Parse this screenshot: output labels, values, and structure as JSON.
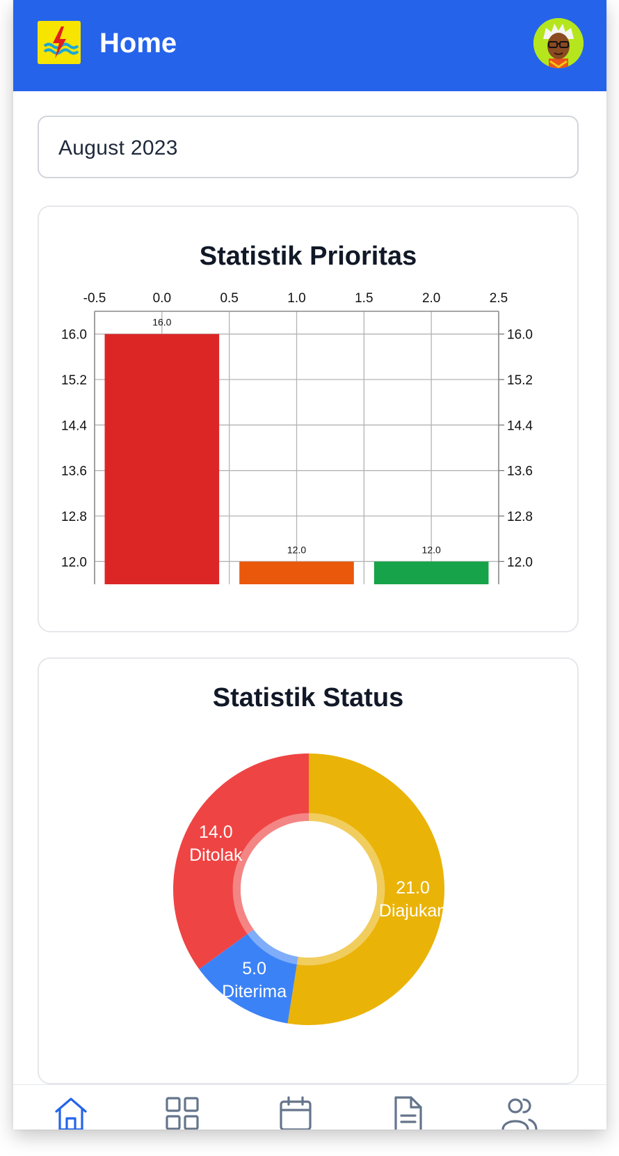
{
  "app": {
    "title": "Home",
    "logo_icon": "pln-lightning-logo-icon",
    "avatar_icon": "user-avatar-icon"
  },
  "month_picker": {
    "value": "August 2023"
  },
  "bar_card": {
    "title": "Statistik Prioritas"
  },
  "pie_card": {
    "title": "Statistik Status"
  },
  "chart_data": [
    {
      "type": "bar",
      "title": "Statistik Prioritas",
      "x": [
        0,
        1,
        2
      ],
      "values": [
        16.0,
        12.0,
        12.0
      ],
      "value_labels": [
        "16.0",
        "12.0",
        "12.0"
      ],
      "colors": [
        "#dc2626",
        "#ea580c",
        "#16a34a"
      ],
      "x_ticks": [
        "-0.5",
        "0.0",
        "0.5",
        "1.0",
        "1.5",
        "2.0",
        "2.5"
      ],
      "x_tick_values": [
        -0.5,
        0.0,
        0.5,
        1.0,
        1.5,
        2.0,
        2.5
      ],
      "y_ticks": [
        "12.0",
        "12.8",
        "13.6",
        "14.4",
        "15.2",
        "16.0"
      ],
      "y_tick_values": [
        12.0,
        12.8,
        13.6,
        14.4,
        15.2,
        16.0
      ],
      "xlim": [
        -0.5,
        2.5
      ],
      "ylim": [
        11.6,
        16.4
      ],
      "grid": true,
      "x_axis_position": "top",
      "y_axis_position": "both"
    },
    {
      "type": "pie",
      "title": "Statistik Status",
      "donut": true,
      "slices": [
        {
          "label": "Diajukan",
          "value": 21.0,
          "value_label": "21.0",
          "color": "#eab308"
        },
        {
          "label": "Diterima",
          "value": 5.0,
          "value_label": "5.0",
          "color": "#3b82f6"
        },
        {
          "label": "Ditolak",
          "value": 14.0,
          "value_label": "14.0",
          "color": "#ef4444"
        }
      ]
    }
  ],
  "nav": {
    "items": [
      {
        "icon": "home-icon",
        "active": true
      },
      {
        "icon": "grid-icon",
        "active": false
      },
      {
        "icon": "calendar-icon",
        "active": false
      },
      {
        "icon": "document-icon",
        "active": false
      },
      {
        "icon": "users-icon",
        "active": false
      }
    ],
    "active_color": "#2563eb",
    "inactive_color": "#64748b"
  }
}
